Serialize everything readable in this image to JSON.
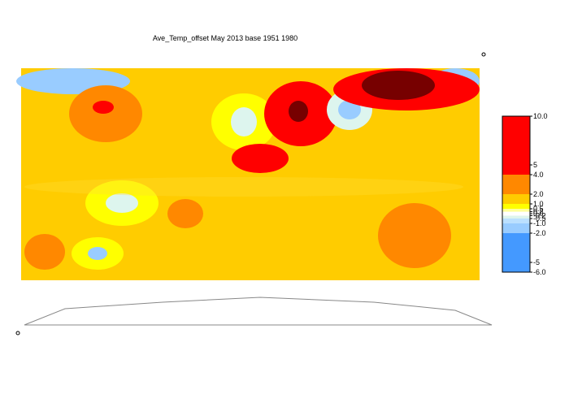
{
  "chart_data": {
    "type": "colorbar",
    "title": "Ave_Temp_offset May 2013  base 1951 1980",
    "levels": [
      -6,
      -2,
      -1,
      -0.5,
      -0.2,
      0.2,
      0.5,
      1,
      2,
      4,
      10
    ],
    "colors": [
      "#4499ff",
      "#99ccff",
      "#bbe0ff",
      "#ddf5ee",
      "#ffffff",
      "#ffff99",
      "#ffff00",
      "#ffcc00",
      "#ff8800",
      "#ff0000",
      "#770000"
    ],
    "ylim": [
      -6,
      10
    ],
    "yticks": [
      {
        "value": 10,
        "label": "10.0"
      },
      5,
      {
        "value": 4,
        "label": "4.0"
      },
      {
        "value": 2,
        "label": "2.0"
      },
      {
        "value": 1,
        "label": "1.0"
      },
      0.5,
      0.2,
      {
        "value": 0,
        "label": "0.0"
      },
      -0.2,
      -0.5,
      {
        "value": -1,
        "label": "-1.0"
      },
      {
        "value": -2,
        "label": "-2.0"
      },
      -5,
      {
        "value": -6,
        "label": "-6.0"
      }
    ]
  }
}
